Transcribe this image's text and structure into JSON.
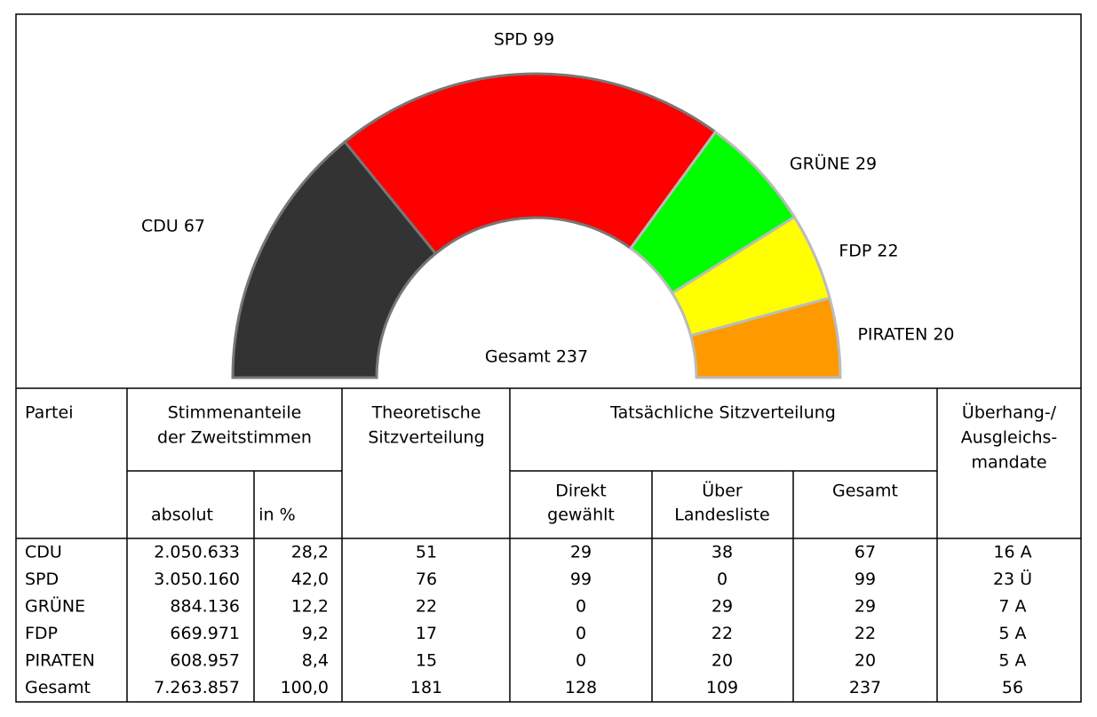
{
  "chart_data": {
    "type": "semicircle",
    "values": [
      67,
      99,
      29,
      22,
      20
    ],
    "value_labels": [
      "CDU 67",
      "SPD 99",
      "GRÜNE 29",
      "FDP 22",
      "PIRATEN 20"
    ],
    "colors": [
      "#333333",
      "#ff0000",
      "#00ff00",
      "#ffff00",
      "#ff9900"
    ],
    "center_label": "Gesamt 237"
  },
  "table": {
    "header": {
      "partei": "Partei",
      "stimmen": [
        "Stimmenanteile",
        "der Zweitstimmen"
      ],
      "absolut": "absolut",
      "prozent": "in %",
      "theoretisch": [
        "Theoretische",
        "Sitzverteilung"
      ],
      "tatsaechlich": "Tatsächliche Sitzverteilung",
      "direkt": [
        "Direkt",
        "gewählt"
      ],
      "liste": [
        "Über",
        "Landesliste"
      ],
      "gesamt": "Gesamt",
      "ueberhang": [
        "Überhang-/",
        "Ausgleichs-",
        "mandate"
      ]
    },
    "rows": [
      [
        "CDU",
        "2.050.633",
        "28,2",
        "51",
        "29",
        "38",
        "67",
        "16 A"
      ],
      [
        "SPD",
        "3.050.160",
        "42,0",
        "76",
        "99",
        "0",
        "99",
        "23 Ü"
      ],
      [
        "GRÜNE",
        "884.136",
        "12,2",
        "22",
        "0",
        "29",
        "29",
        "7 A"
      ],
      [
        "FDP",
        "669.971",
        "9,2",
        "17",
        "0",
        "22",
        "22",
        "5 A"
      ],
      [
        "PIRATEN",
        "608.957",
        "8,4",
        "15",
        "0",
        "20",
        "20",
        "5 A"
      ],
      [
        "Gesamt",
        "7.263.857",
        "100,0",
        "181",
        "128",
        "109",
        "237",
        "56"
      ]
    ]
  }
}
